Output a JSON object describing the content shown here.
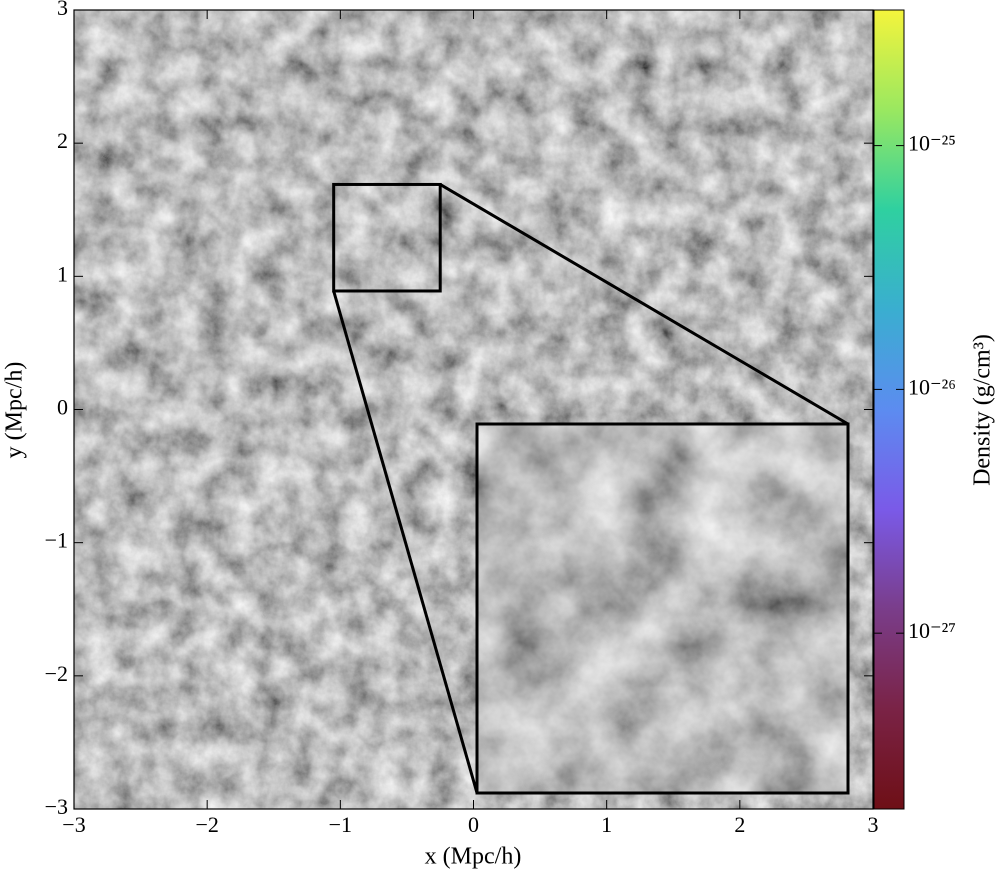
{
  "chart_data": {
    "type": "heatmap",
    "xlabel": "x (Mpc/h)",
    "ylabel": "y (Mpc/h)",
    "colorbar_label": "Density (g/cm³)",
    "xlim": [
      -3,
      3
    ],
    "ylim": [
      -3,
      3
    ],
    "xticks": [
      {
        "value": -3,
        "label": "−3"
      },
      {
        "value": -2,
        "label": "−2"
      },
      {
        "value": -1,
        "label": "−1"
      },
      0,
      1,
      2,
      3
    ],
    "yticks": [
      {
        "value": -3,
        "label": "−3"
      },
      {
        "value": -2,
        "label": "−2"
      },
      {
        "value": -1,
        "label": "−1"
      },
      0,
      1,
      2,
      3
    ],
    "clim": [
      1.9e-28,
      3.6e-25
    ],
    "color_scale": "log",
    "cticks": [
      {
        "value": 1e-27,
        "label": "10⁻²⁷"
      },
      {
        "value": 1e-26,
        "label": "10⁻²⁶"
      },
      {
        "value": 1e-25,
        "label": "10⁻²⁵"
      }
    ],
    "colormap": [
      "#6e0f16",
      "#7a2346",
      "#7a3d8a",
      "#7a5ae8",
      "#5c8cf0",
      "#3aaed0",
      "#2fd0a0",
      "#9ae860",
      "#f4f43c"
    ],
    "zoom_box": {
      "xlim": [
        -1.05,
        -0.25
      ],
      "ylim": [
        0.89,
        1.69
      ]
    }
  }
}
